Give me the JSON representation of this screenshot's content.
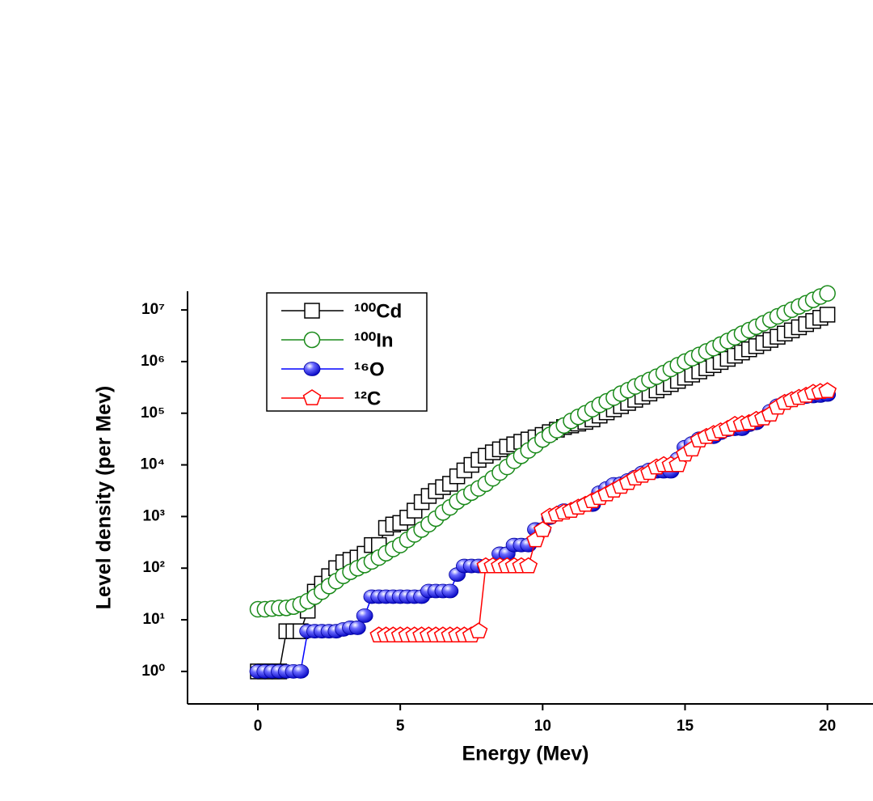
{
  "chart_data": {
    "type": "line",
    "xlabel": "Energy (Mev)",
    "ylabel": "Level density (per Mev)",
    "yscale": "log",
    "legend": "upper left",
    "xlim": [
      -2.47,
      21.6
    ],
    "ylim": [
      0.235,
      23000000
    ],
    "xticks": [
      0,
      5,
      10,
      15,
      20
    ],
    "yticks": [
      {
        "value": 1,
        "label": "10⁰"
      },
      {
        "value": 10,
        "label": "10¹"
      },
      {
        "value": 100,
        "label": "10²"
      },
      {
        "value": 1000,
        "label": "10³"
      },
      {
        "value": 10000,
        "label": "10⁴"
      },
      {
        "value": 100000,
        "label": "10⁵"
      },
      {
        "value": 1000000,
        "label": "10⁶"
      },
      {
        "value": 10000000,
        "label": "10⁷"
      }
    ],
    "x": [
      0,
      0.25,
      0.5,
      0.75,
      1,
      1.25,
      1.5,
      1.75,
      2,
      2.25,
      2.5,
      2.75,
      3,
      3.25,
      3.5,
      3.75,
      4,
      4.25,
      4.5,
      4.75,
      5,
      5.25,
      5.5,
      5.75,
      6,
      6.25,
      6.5,
      6.75,
      7,
      7.25,
      7.5,
      7.75,
      8,
      8.25,
      8.5,
      8.75,
      9,
      9.25,
      9.5,
      9.75,
      10,
      10.25,
      10.5,
      10.75,
      11,
      11.25,
      11.5,
      11.75,
      12,
      12.25,
      12.5,
      12.75,
      13,
      13.25,
      13.5,
      13.75,
      14,
      14.25,
      14.5,
      14.75,
      15,
      15.25,
      15.5,
      15.75,
      16,
      16.25,
      16.5,
      16.75,
      17,
      17.25,
      17.5,
      17.75,
      18,
      18.25,
      18.5,
      18.75,
      19,
      19.25,
      19.5,
      19.75,
      20
    ],
    "series": [
      {
        "name": "¹⁰⁰Cd",
        "color": "#000000",
        "marker": "square",
        "values": [
          1,
          1,
          1,
          1,
          6,
          6,
          6,
          15,
          35,
          50,
          70,
          100,
          130,
          145,
          160,
          190,
          280,
          280,
          600,
          700,
          750,
          950,
          1300,
          1900,
          2500,
          3100,
          3700,
          4300,
          6000,
          7800,
          10000,
          12500,
          15000,
          17500,
          20000,
          22500,
          25000,
          28000,
          31000,
          34000,
          38000,
          43000,
          48000,
          54000,
          58000,
          63000,
          68000,
          76000,
          90000,
          104000,
          119000,
          137000,
          158000,
          182000,
          209000,
          241000,
          277000,
          319000,
          367000,
          423000,
          487000,
          560000,
          645000,
          742000,
          854000,
          983000,
          1130000,
          1300000,
          1500000,
          1730000,
          1990000,
          2290000,
          2630000,
          3030000,
          3490000,
          4020000,
          4620000,
          5320000,
          6120000,
          7050000,
          8110000
        ]
      },
      {
        "name": "¹⁰⁰In",
        "color": "#1a8a1a",
        "marker": "circle",
        "values": [
          16,
          16,
          16.5,
          17,
          17,
          18,
          20,
          23,
          28,
          35,
          45,
          56,
          71,
          85,
          100,
          115,
          135,
          160,
          195,
          235,
          280,
          355,
          450,
          560,
          710,
          910,
          1200,
          1500,
          1950,
          2400,
          2900,
          3500,
          4300,
          5500,
          7100,
          9100,
          12000,
          15000,
          19000,
          24000,
          31000,
          38000,
          47000,
          58000,
          71000,
          85000,
          100000,
          120000,
          145000,
          170000,
          200000,
          240000,
          280000,
          330000,
          380000,
          440000,
          510000,
          600000,
          720000,
          850000,
          1000000,
          1160000,
          1350000,
          1570000,
          1820000,
          2140000,
          2510000,
          2950000,
          3470000,
          4070000,
          4730000,
          5500000,
          6460000,
          7500000,
          8710000,
          10100000,
          11700000,
          13500000,
          15700000,
          18200000,
          20900000
        ]
      },
      {
        "name": "¹⁶O",
        "color": "#0000ff",
        "marker": "sphere",
        "values": [
          1,
          1,
          1,
          1,
          1,
          1,
          1,
          6,
          6,
          6,
          6,
          6,
          6.5,
          7,
          7,
          12,
          28,
          28,
          28,
          28,
          28,
          28,
          28,
          28,
          36,
          36,
          36,
          36,
          75,
          110,
          110,
          110,
          110,
          110,
          190,
          190,
          280,
          280,
          280,
          560,
          560,
          950,
          1100,
          1300,
          1300,
          1500,
          1700,
          1700,
          2900,
          3500,
          4200,
          4300,
          5000,
          5800,
          7000,
          8000,
          7500,
          7500,
          7500,
          13000,
          22000,
          26000,
          32000,
          35000,
          35000,
          42000,
          48000,
          50000,
          50000,
          60000,
          65000,
          80000,
          110000,
          140000,
          160000,
          180000,
          200000,
          210000,
          215000,
          220000,
          230000
        ]
      },
      {
        "name": "¹²C",
        "color": "#ff0000",
        "marker": "pentagon",
        "values": [
          null,
          null,
          null,
          null,
          null,
          null,
          null,
          null,
          null,
          null,
          null,
          null,
          null,
          null,
          null,
          null,
          null,
          5,
          5,
          5,
          5,
          5,
          5,
          5,
          5,
          5,
          5,
          5,
          5,
          5,
          5,
          6,
          110,
          110,
          110,
          110,
          110,
          110,
          110,
          350,
          550,
          1000,
          1100,
          1200,
          1300,
          1500,
          1700,
          2000,
          2300,
          2700,
          3200,
          3800,
          4500,
          5500,
          6200,
          7000,
          9000,
          10000,
          10000,
          10000,
          16000,
          20000,
          30000,
          35000,
          40000,
          45000,
          50000,
          60000,
          62000,
          65000,
          75000,
          80000,
          95000,
          130000,
          160000,
          180000,
          200000,
          220000,
          250000,
          260000,
          270000
        ]
      }
    ]
  }
}
